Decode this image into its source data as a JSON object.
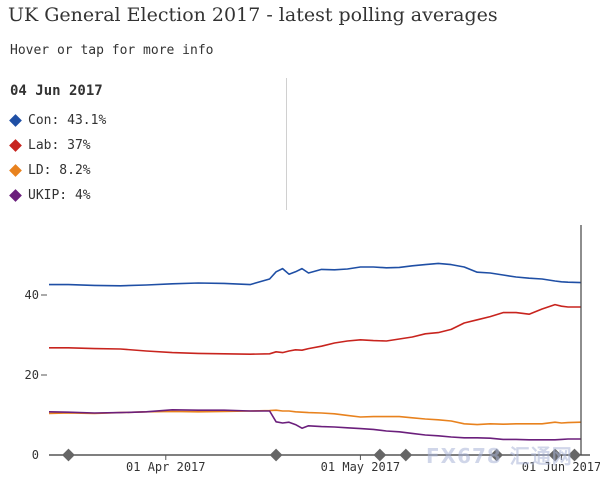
{
  "header": {
    "title": "UK General Election 2017 - latest polling averages",
    "subtitle": "Hover or tap for more info"
  },
  "tooltip": {
    "date": "04 Jun 2017",
    "items": [
      {
        "label": "Con: 43.1%",
        "color": "#1f4fa5"
      },
      {
        "label": "Lab: 37%",
        "color": "#c8241e"
      },
      {
        "label": "LD: 8.2%",
        "color": "#e8821e"
      },
      {
        "label": "UKIP: 4%",
        "color": "#6b1f7c"
      }
    ]
  },
  "watermark": "FX678 汇通网",
  "chart_data": {
    "type": "line",
    "title": "UK General Election 2017 - latest polling averages",
    "xlabel": "",
    "ylabel": "",
    "ylim": [
      0,
      50
    ],
    "x": [
      "2017-03-14",
      "2017-03-17",
      "2017-03-21",
      "2017-03-25",
      "2017-03-29",
      "2017-04-02",
      "2017-04-06",
      "2017-04-10",
      "2017-04-14",
      "2017-04-17",
      "2017-04-18",
      "2017-04-19",
      "2017-04-20",
      "2017-04-21",
      "2017-04-22",
      "2017-04-23",
      "2017-04-25",
      "2017-04-27",
      "2017-04-29",
      "2017-05-01",
      "2017-05-03",
      "2017-05-05",
      "2017-05-07",
      "2017-05-09",
      "2017-05-11",
      "2017-05-13",
      "2017-05-15",
      "2017-05-17",
      "2017-05-19",
      "2017-05-21",
      "2017-05-23",
      "2017-05-25",
      "2017-05-27",
      "2017-05-29",
      "2017-05-31",
      "2017-06-01",
      "2017-06-02",
      "2017-06-04"
    ],
    "series": [
      {
        "name": "Con",
        "color": "#1f4fa5",
        "values": [
          42.6,
          42.6,
          42.4,
          42.3,
          42.5,
          42.8,
          43.0,
          42.9,
          42.6,
          44.0,
          45.8,
          46.6,
          45.2,
          45.8,
          46.6,
          45.5,
          46.4,
          46.3,
          46.5,
          47.0,
          47.0,
          46.8,
          46.9,
          47.3,
          47.6,
          47.9,
          47.6,
          47.0,
          45.7,
          45.5,
          45.0,
          44.5,
          44.2,
          44.0,
          43.5,
          43.3,
          43.2,
          43.1
        ]
      },
      {
        "name": "Lab",
        "color": "#c8241e",
        "values": [
          26.8,
          26.8,
          26.6,
          26.5,
          26.0,
          25.6,
          25.4,
          25.3,
          25.2,
          25.3,
          25.8,
          25.6,
          26.0,
          26.3,
          26.2,
          26.6,
          27.2,
          28.0,
          28.5,
          28.8,
          28.6,
          28.5,
          29.0,
          29.5,
          30.3,
          30.6,
          31.4,
          33.0,
          33.8,
          34.6,
          35.6,
          35.6,
          35.2,
          36.5,
          37.6,
          37.2,
          37.0,
          37.0
        ]
      },
      {
        "name": "LD",
        "color": "#e8821e",
        "values": [
          10.4,
          10.5,
          10.4,
          10.6,
          10.8,
          10.9,
          10.8,
          10.9,
          11.0,
          11.1,
          11.2,
          11.0,
          11.0,
          10.8,
          10.7,
          10.6,
          10.5,
          10.3,
          9.9,
          9.5,
          9.6,
          9.6,
          9.6,
          9.3,
          9.0,
          8.8,
          8.5,
          7.8,
          7.6,
          7.8,
          7.7,
          7.8,
          7.8,
          7.8,
          8.2,
          8.0,
          8.1,
          8.2
        ]
      },
      {
        "name": "UKIP",
        "color": "#6b1f7c",
        "values": [
          10.8,
          10.7,
          10.5,
          10.6,
          10.8,
          11.3,
          11.2,
          11.2,
          11.0,
          11.0,
          8.3,
          8.0,
          8.2,
          7.6,
          6.7,
          7.3,
          7.1,
          7.0,
          6.8,
          6.6,
          6.4,
          6.0,
          5.8,
          5.4,
          5.0,
          4.8,
          4.5,
          4.3,
          4.3,
          4.2,
          3.9,
          3.9,
          3.8,
          3.8,
          3.8,
          3.9,
          4.0,
          4.0
        ]
      }
    ],
    "y_ticks": [
      0,
      20,
      40
    ],
    "x_ticks": [
      {
        "date": "2017-04-01",
        "label": "01 Apr 2017"
      },
      {
        "date": "2017-05-01",
        "label": "01 May 2017"
      },
      {
        "date": "2017-06-01",
        "label": "01 Jun 2017"
      }
    ],
    "event_markers": [
      "2017-03-17",
      "2017-04-18",
      "2017-05-04",
      "2017-05-08",
      "2017-05-22",
      "2017-05-31",
      "2017-06-03"
    ],
    "current_date": "2017-06-04"
  }
}
